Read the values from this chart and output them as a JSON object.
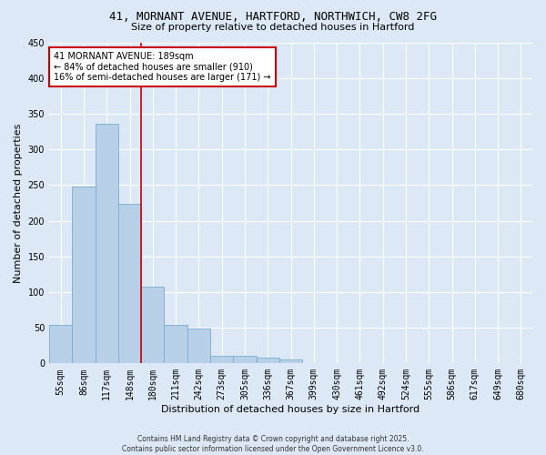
{
  "title_line1": "41, MORNANT AVENUE, HARTFORD, NORTHWICH, CW8 2FG",
  "title_line2": "Size of property relative to detached houses in Hartford",
  "xlabel": "Distribution of detached houses by size in Hartford",
  "ylabel": "Number of detached properties",
  "categories": [
    "55sqm",
    "86sqm",
    "117sqm",
    "148sqm",
    "180sqm",
    "211sqm",
    "242sqm",
    "273sqm",
    "305sqm",
    "336sqm",
    "367sqm",
    "399sqm",
    "430sqm",
    "461sqm",
    "492sqm",
    "524sqm",
    "555sqm",
    "586sqm",
    "617sqm",
    "649sqm",
    "680sqm"
  ],
  "values": [
    54,
    248,
    336,
    223,
    108,
    54,
    49,
    11,
    11,
    8,
    5,
    0,
    1,
    0,
    0,
    0,
    0,
    0,
    0,
    0,
    1
  ],
  "bar_color": "#b8cfe8",
  "bar_edge_color": "#7aaad0",
  "vline_x": 4,
  "vline_color": "#cc0000",
  "ylim": [
    0,
    450
  ],
  "yticks": [
    0,
    50,
    100,
    150,
    200,
    250,
    300,
    350,
    400,
    450
  ],
  "bg_color": "#dce8f5",
  "plot_bg_color": "#dce8f5",
  "annotation_text": "41 MORNANT AVENUE: 189sqm\n← 84% of detached houses are smaller (910)\n16% of semi-detached houses are larger (171) →",
  "annotation_box_color": "#cc0000",
  "footer_line1": "Contains HM Land Registry data © Crown copyright and database right 2025.",
  "footer_line2": "Contains public sector information licensed under the Open Government Licence v3.0.",
  "title_fontsize": 9,
  "subtitle_fontsize": 8,
  "axis_label_fontsize": 8,
  "tick_fontsize": 7,
  "annotation_fontsize": 7,
  "footer_fontsize": 5.5
}
